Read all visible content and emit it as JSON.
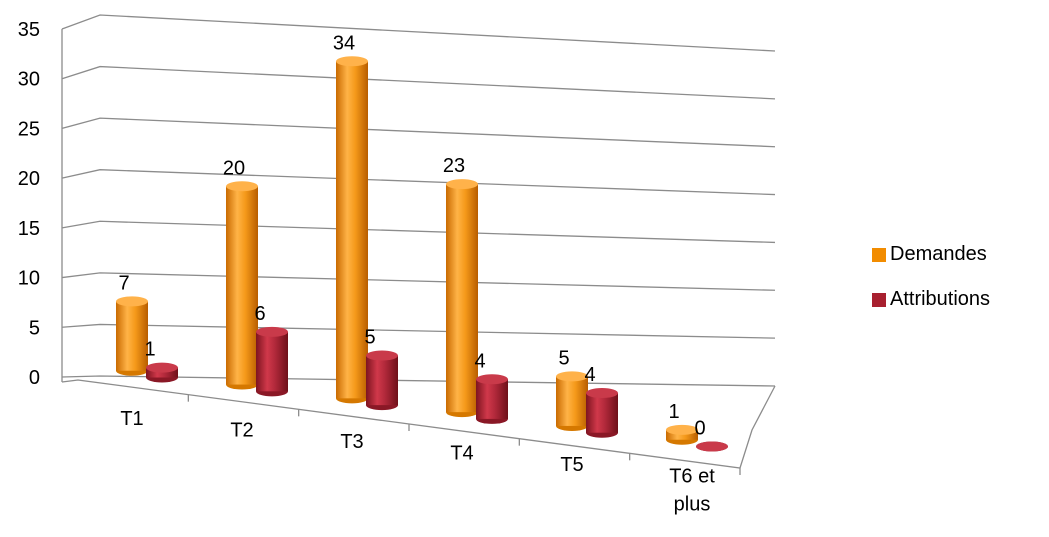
{
  "chart_data": {
    "type": "bar",
    "categories": [
      "T1",
      "T2",
      "T3",
      "T4",
      "T5",
      "T6 et plus"
    ],
    "series": [
      {
        "name": "Demandes",
        "values": [
          7,
          20,
          34,
          23,
          5,
          1
        ],
        "color": "#F28C00"
      },
      {
        "name": "Attributions",
        "values": [
          1,
          6,
          5,
          4,
          4,
          0
        ],
        "color": "#A8202F"
      }
    ],
    "ylim": [
      0,
      35
    ],
    "yticks": [
      0,
      5,
      10,
      15,
      20,
      25,
      30,
      35
    ],
    "grid": true,
    "style": "3d-cylinder",
    "legend_position": "right"
  }
}
